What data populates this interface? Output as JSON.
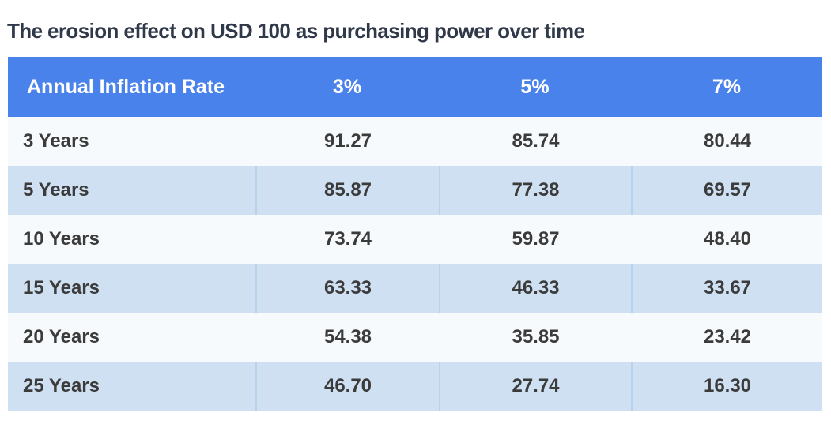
{
  "title": "The erosion effect on USD 100 as purchasing power over time",
  "table": {
    "header": {
      "label": "Annual Inflation Rate",
      "col1": "3%",
      "col2": "5%",
      "col3": "7%"
    },
    "rows": [
      {
        "label": "3 Years",
        "values": [
          "91.27",
          "85.74",
          "80.44"
        ]
      },
      {
        "label": "5 Years",
        "values": [
          "85.87",
          "77.38",
          "69.57"
        ]
      },
      {
        "label": "10 Years",
        "values": [
          "73.74",
          "59.87",
          "48.40"
        ]
      },
      {
        "label": "15 Years",
        "values": [
          "63.33",
          "46.33",
          "33.67"
        ]
      },
      {
        "label": "20 Years",
        "values": [
          "54.38",
          "35.85",
          "23.42"
        ]
      },
      {
        "label": "25 Years",
        "values": [
          "46.70",
          "27.74",
          "16.30"
        ]
      }
    ]
  },
  "colors": {
    "header_background": "#4a82ec",
    "header_text": "#ffffff",
    "row_light": "#f7fafc",
    "row_blue": "#cfe0f3",
    "divider": "#b9d2ec",
    "body_text": "#3b3b3b",
    "title_text": "#30394a"
  },
  "chart_data": {
    "type": "table",
    "title": "The erosion effect on USD 100 as purchasing power over time",
    "row_header": "Annual Inflation Rate",
    "columns": [
      "3%",
      "5%",
      "7%"
    ],
    "row_categories": [
      "3 Years",
      "5 Years",
      "10 Years",
      "15 Years",
      "20 Years",
      "25 Years"
    ],
    "series": [
      {
        "name": "3%",
        "values": [
          91.27,
          85.87,
          73.74,
          63.33,
          54.38,
          46.7
        ]
      },
      {
        "name": "5%",
        "values": [
          85.74,
          77.38,
          59.87,
          46.33,
          35.85,
          27.74
        ]
      },
      {
        "name": "7%",
        "values": [
          80.44,
          69.57,
          48.4,
          33.67,
          23.42,
          16.3
        ]
      }
    ]
  }
}
